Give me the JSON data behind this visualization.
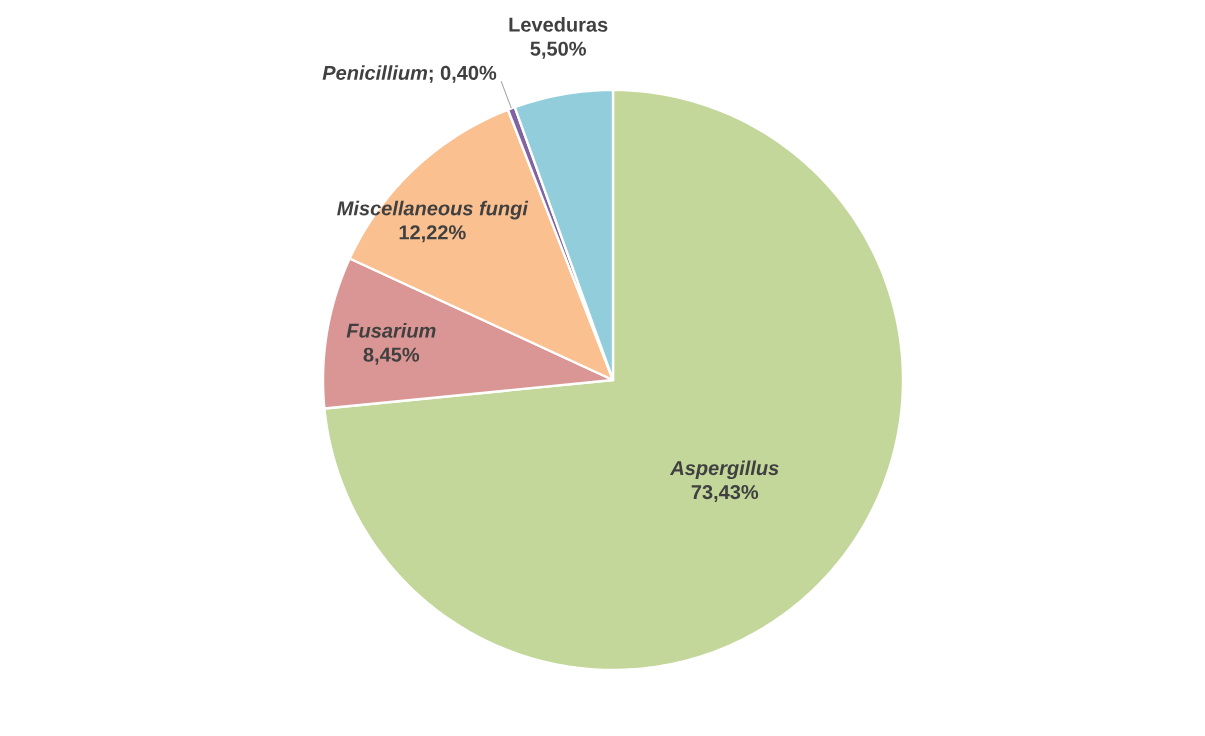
{
  "chart_data": {
    "type": "pie",
    "categories": [
      "Aspergillus",
      "Fusarium",
      "Miscellaneous fungi",
      "Penicillium",
      "Leveduras"
    ],
    "values": [
      73.43,
      8.45,
      12.22,
      0.4,
      5.5
    ],
    "colors": [
      "#c4d79b",
      "#da9694",
      "#fac090",
      "#8064a2",
      "#92cddc"
    ],
    "value_labels": [
      "73,43%",
      "8,45%",
      "12,22%",
      "; 0,40%",
      "5,50%"
    ]
  }
}
